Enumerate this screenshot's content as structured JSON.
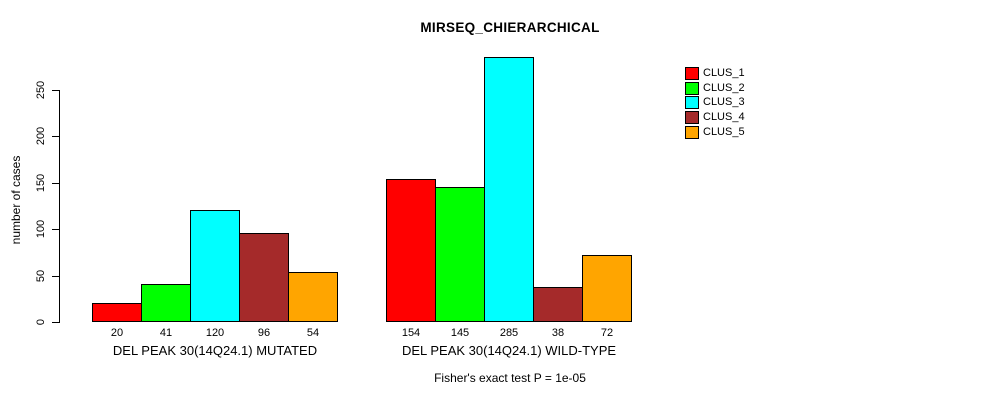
{
  "title": "MIRSEQ_CHIERARCHICAL",
  "footer": "Fisher's exact test P = 1e-05",
  "chart_data": {
    "type": "bar",
    "title": "MIRSEQ_CHIERARCHICAL",
    "ylabel": "number of cases",
    "xlabel": "",
    "yticks": [
      0,
      50,
      100,
      150,
      200,
      250
    ],
    "ylim": [
      0,
      285
    ],
    "grid": false,
    "legend_position": "right",
    "categories": [
      "DEL PEAK 30(14Q24.1) MUTATED",
      "DEL PEAK 30(14Q24.1) WILD-TYPE"
    ],
    "series": [
      {
        "name": "CLUS_1",
        "color": "#ff0000",
        "values": [
          20,
          154
        ]
      },
      {
        "name": "CLUS_2",
        "color": "#00ff00",
        "values": [
          41,
          145
        ]
      },
      {
        "name": "CLUS_3",
        "color": "#00ffff",
        "values": [
          120,
          285
        ]
      },
      {
        "name": "CLUS_4",
        "color": "#a52a2a",
        "values": [
          96,
          38
        ]
      },
      {
        "name": "CLUS_5",
        "color": "#ffa500",
        "values": [
          54,
          72
        ]
      }
    ],
    "bar_value_labels": [
      [
        20,
        41,
        120,
        96,
        54
      ],
      [
        154,
        145,
        285,
        38,
        72
      ]
    ],
    "annotation": "Fisher's exact test P = 1e-05",
    "axis_color": "#000000",
    "text_color": "#000000"
  }
}
